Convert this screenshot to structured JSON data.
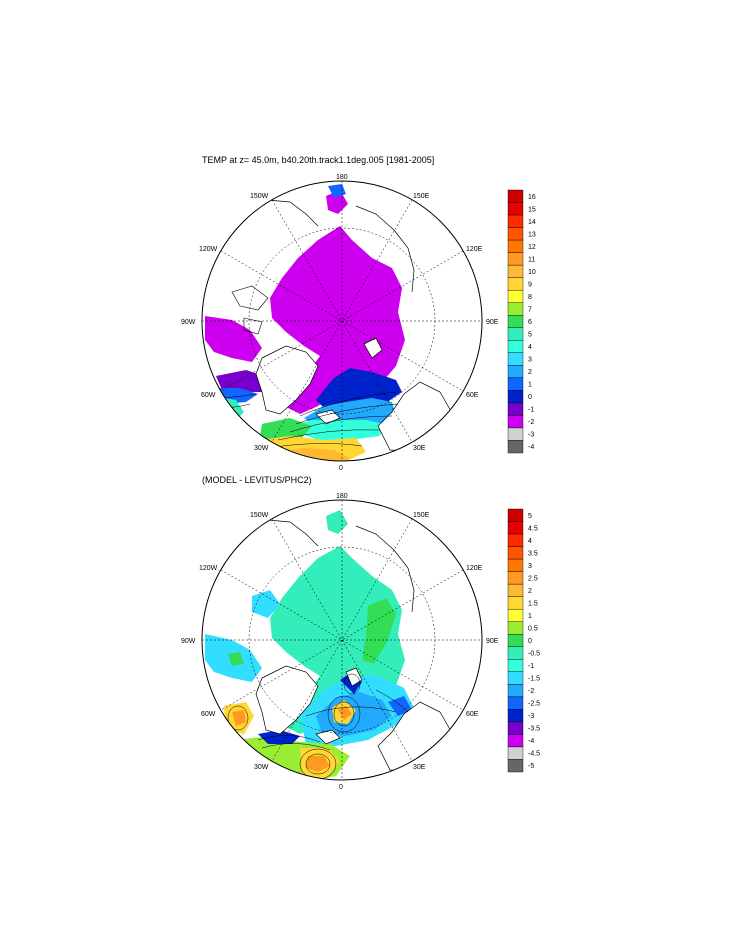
{
  "panels": [
    {
      "title": "TEMP at z=  45.0m, b40.20th.track1.1deg.005 [1981-2005]",
      "lon_labels": [
        "180",
        "150E",
        "120E",
        "90E",
        "60E",
        "30E",
        "0",
        "30W",
        "60W",
        "90W",
        "120W",
        "150W"
      ],
      "colorbar": {
        "labels": [
          "16",
          "15",
          "14",
          "13",
          "12",
          "11",
          "10",
          "9",
          "8",
          "7",
          "6",
          "5",
          "4",
          "3",
          "2",
          "1",
          "0",
          "-1",
          "-2",
          "-3",
          "-4"
        ],
        "colors": [
          "#cc0000",
          "#e60000",
          "#ff2a00",
          "#ff5500",
          "#ff7700",
          "#ff9922",
          "#ffb833",
          "#ffd633",
          "#ffff33",
          "#99ee33",
          "#33dd55",
          "#33eebb",
          "#33ffdd",
          "#33ddff",
          "#22aaff",
          "#1166ff",
          "#0022cc",
          "#7700cc",
          "#cc00ee",
          "#d0d0d0",
          "#666666"
        ]
      }
    },
    {
      "title": "(MODEL - LEVITUS/PHC2)",
      "lon_labels": [
        "180",
        "150E",
        "120E",
        "90E",
        "60E",
        "30E",
        "0",
        "30W",
        "60W",
        "90W",
        "120W",
        "150W"
      ],
      "colorbar": {
        "labels": [
          "5",
          "4.5",
          "4",
          "3.5",
          "3",
          "2.5",
          "2",
          "1.5",
          "1",
          "0.5",
          "0",
          "-0.5",
          "-1",
          "-1.5",
          "-2",
          "-2.5",
          "-3",
          "-3.5",
          "-4",
          "-4.5",
          "-5"
        ],
        "colors": [
          "#cc0000",
          "#e60000",
          "#ff2a00",
          "#ff5500",
          "#ff7700",
          "#ff9922",
          "#ffb833",
          "#ffd633",
          "#ffff33",
          "#99ee33",
          "#33dd55",
          "#33eebb",
          "#33ffdd",
          "#33ddff",
          "#22aaff",
          "#1166ff",
          "#0022cc",
          "#7700cc",
          "#cc00ee",
          "#d0d0d0",
          "#666666"
        ]
      }
    }
  ]
}
